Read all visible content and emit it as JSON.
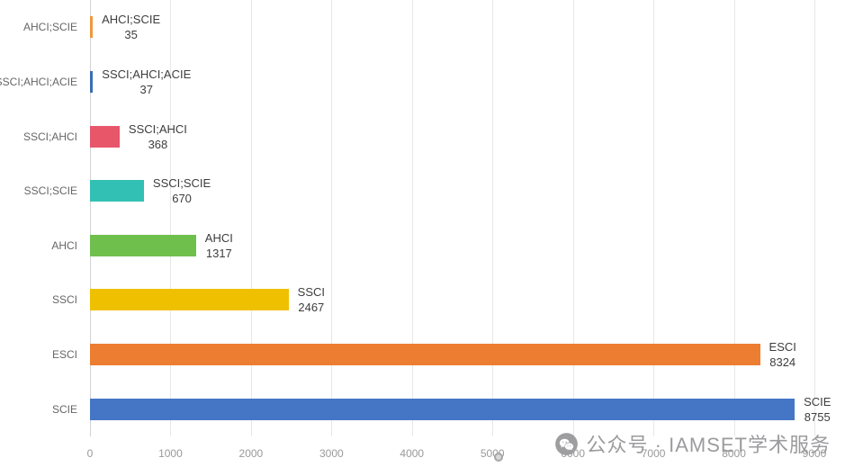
{
  "chart_data": {
    "type": "bar",
    "orientation": "horizontal",
    "title": "",
    "xlabel": "",
    "ylabel": "",
    "xlim": [
      0,
      9000
    ],
    "x_ticks": [
      0,
      1000,
      2000,
      3000,
      4000,
      5000,
      6000,
      7000,
      8000,
      9000
    ],
    "grid": true,
    "legend": false,
    "categories": [
      "AHCI;SCIE",
      "SSCI;AHCI;ACIE",
      "SSCI;AHCI",
      "SSCI;SCIE",
      "AHCI",
      "SSCI",
      "ESCI",
      "SCIE"
    ],
    "values": [
      35,
      37,
      368,
      670,
      1317,
      2467,
      8324,
      8755
    ],
    "bar_colors": [
      "#F0973C",
      "#3A6DB5",
      "#E8566A",
      "#32C0B4",
      "#6FBF4D",
      "#EFC000",
      "#ED7D31",
      "#4576C5"
    ],
    "value_label_format": "name_over_value"
  },
  "watermark": {
    "text": "公众号 · IAMSET学术服务",
    "icon": "wechat-icon",
    "color": "#9B9B9E"
  },
  "style_colors": {
    "gridline": "#E7E7E7",
    "axis_line": "#D2D2D2",
    "tick_text": "#999999",
    "category_text": "#666666",
    "bar_label_text": "#3D3D3D"
  }
}
